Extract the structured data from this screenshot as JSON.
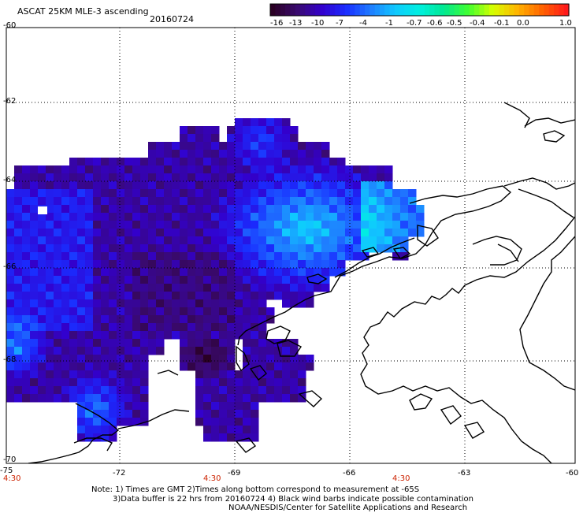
{
  "title": "ASCAT 25KM MLE-3 ascending",
  "date": "20160724",
  "colorbar": {
    "labels": [
      "-16",
      "-13",
      "-10",
      "-7",
      "-4",
      "-1",
      "-0.7",
      "-0.6",
      "-0.5",
      "-0.4",
      "-0.1",
      "0.0",
      "1.0"
    ],
    "colors": [
      "#2a0024",
      "#3a0a6e",
      "#3300cc",
      "#1a2cff",
      "#1f7cff",
      "#10c8ff",
      "#00f0e0",
      "#00e890",
      "#40ff30",
      "#d8ff00",
      "#ffb400",
      "#ff6400",
      "#ff1a1a"
    ]
  },
  "axes": {
    "lon_labels": [
      "-75",
      "-72",
      "-69",
      "-66",
      "-63",
      "-60"
    ],
    "lat_labels": [
      "-60",
      "-62",
      "-64",
      "-66",
      "-68",
      "-70"
    ],
    "time_labels": [
      "4:30",
      "4:30",
      "4:30"
    ]
  },
  "notes": [
    "Note: 1) Times are GMT 2)Times along bottom correspond to measurement at -65S",
    "3)Data buffer is 22 hrs from 20160724 4) Black wind barbs indicate possible contamination",
    "NOAA/NESDIS/Center for Satellite Applications and Research"
  ]
}
